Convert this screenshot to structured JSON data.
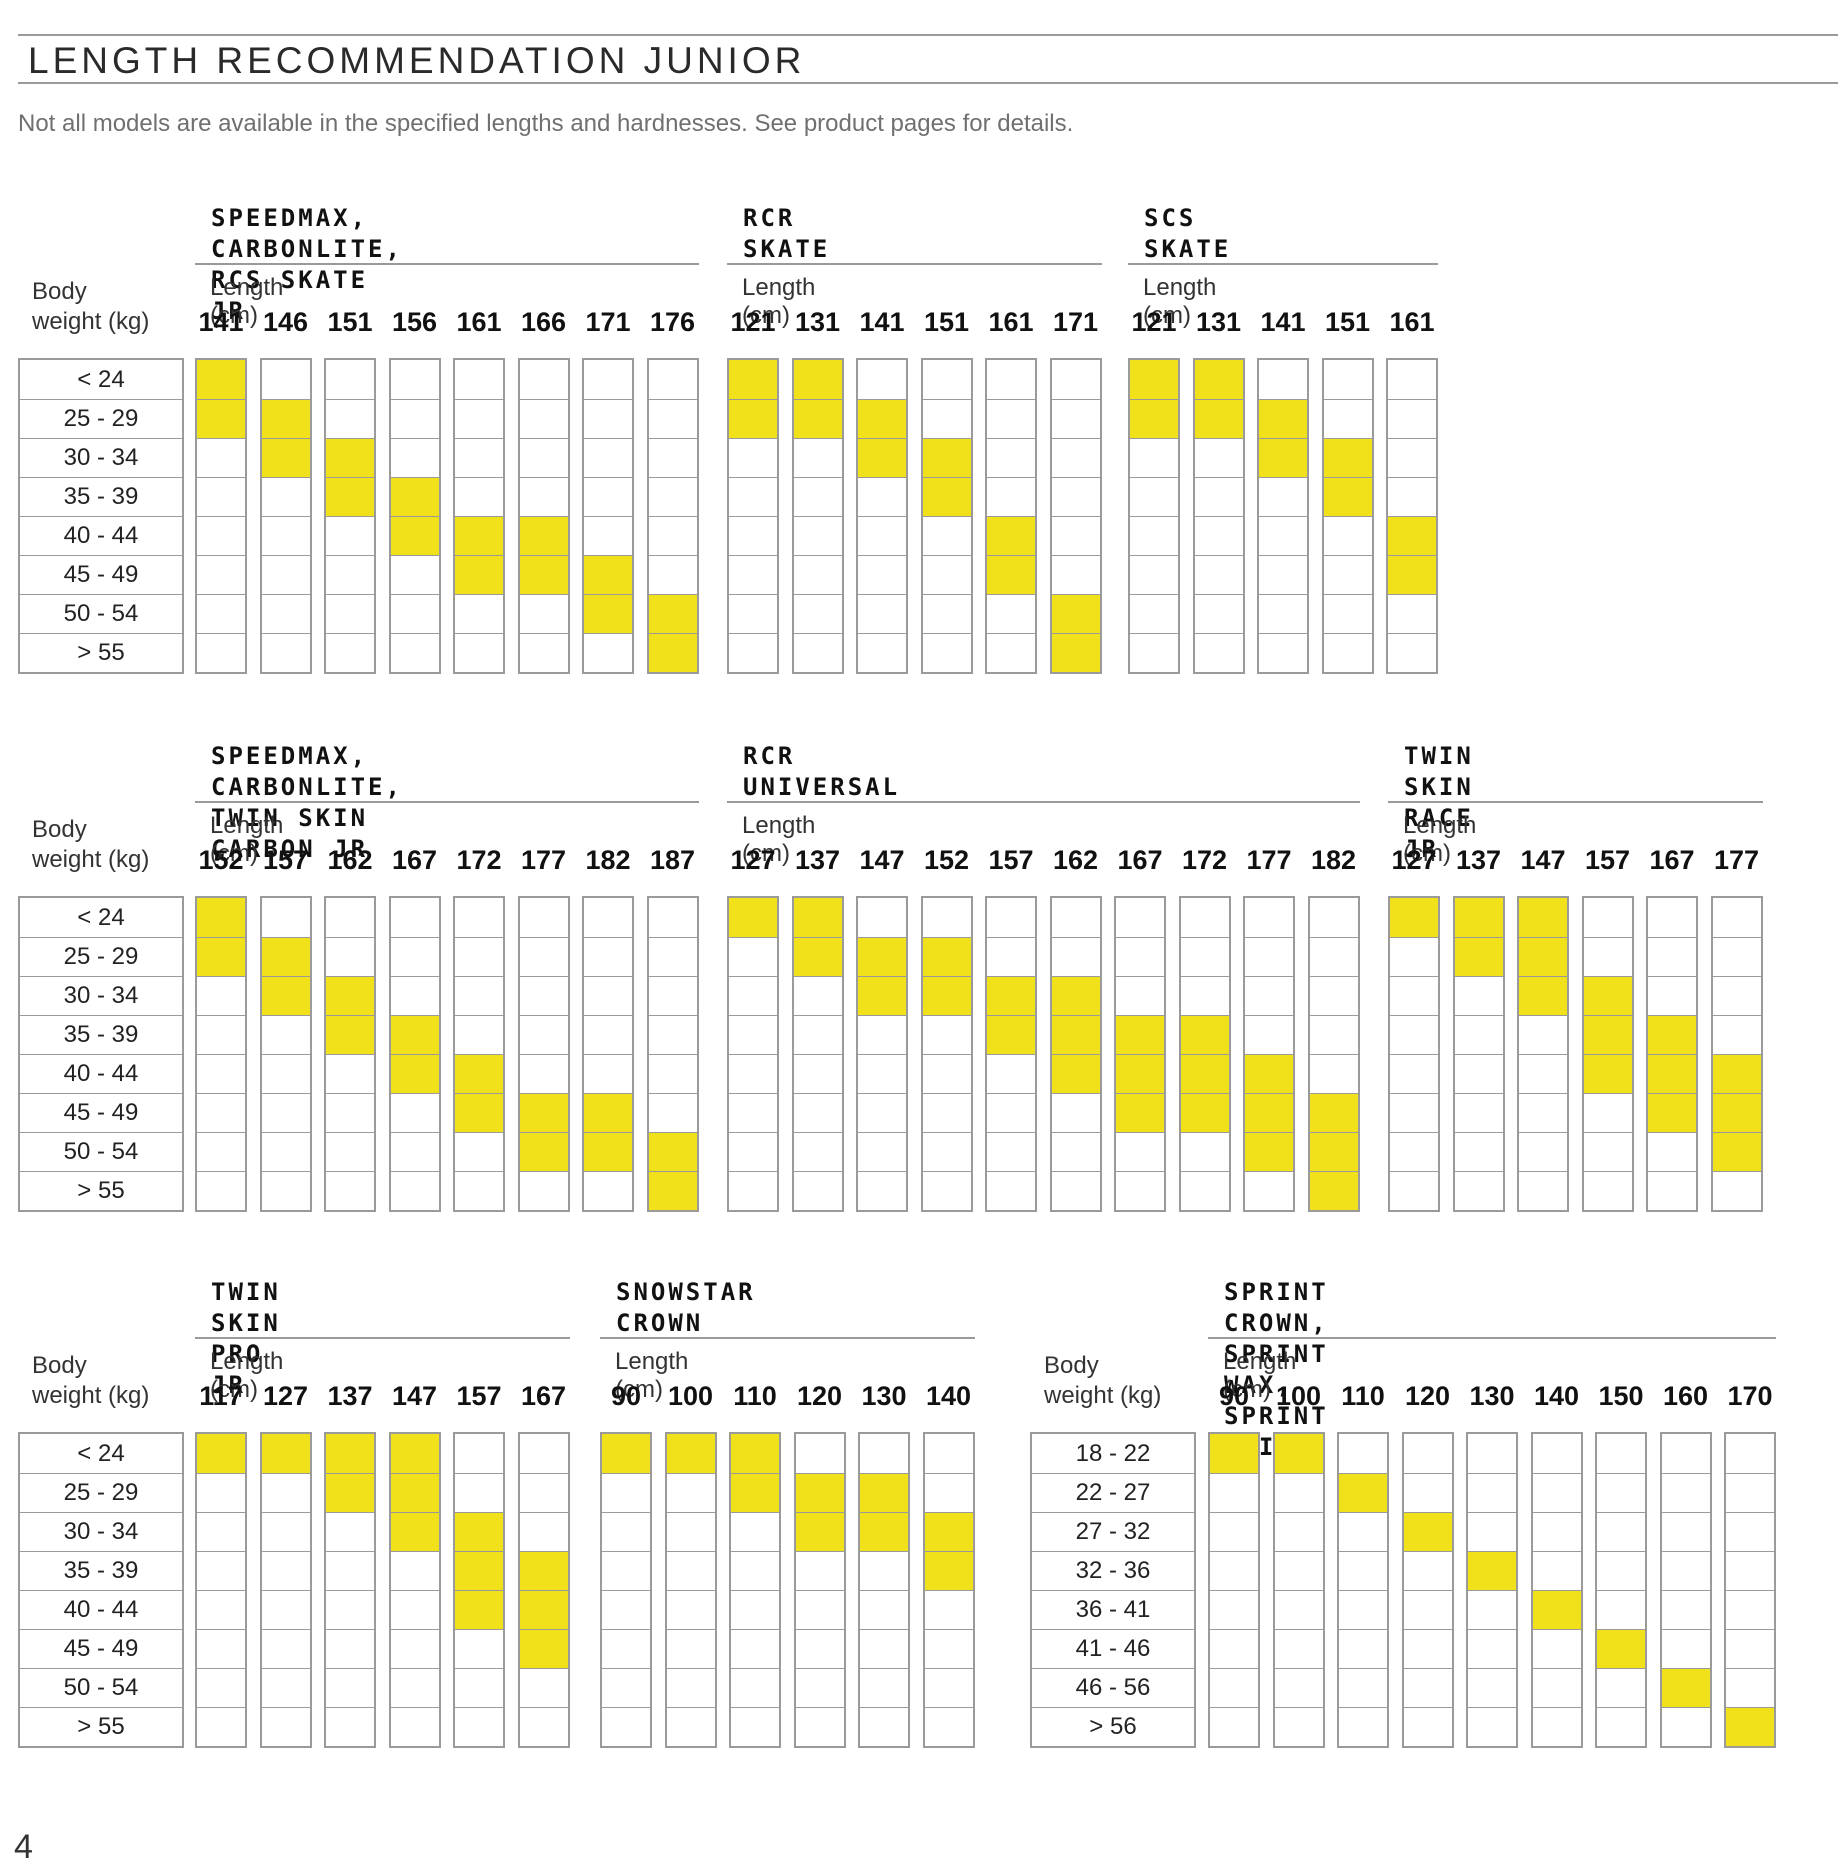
{
  "page": {
    "title": "LENGTH RECOMMENDATION JUNIOR",
    "subtitle": "Not all models are available in the specified lengths and hardnesses. See product pages for details.",
    "page_number": "4"
  },
  "colors": {
    "recommended": "#f0e11b",
    "grid": "#9a9a9a",
    "background": "#ffffff"
  },
  "labels": {
    "body_weight": "Body\nweight (kg)",
    "length": "Length (cm)"
  },
  "weights_default": [
    "< 24",
    "25 - 29",
    "30 - 34",
    "35 - 39",
    "40 - 44",
    "45 - 49",
    "50 - 54",
    "> 55"
  ],
  "weights_sprint": [
    "18 - 22",
    "22 - 27",
    "27 - 32",
    "32 - 36",
    "36 - 41",
    "41 - 46",
    "46 - 56",
    "> 56"
  ],
  "groups": [
    {
      "name": "SPEEDMAX, CARBONLITE,\nRCS SKATE JR",
      "lengths": [
        "141",
        "146",
        "151",
        "156",
        "161",
        "166",
        "171",
        "176"
      ],
      "recommended": [
        [
          0,
          1
        ],
        [
          1,
          2
        ],
        [
          2,
          3
        ],
        [
          3,
          4
        ],
        [
          4,
          5
        ],
        [
          4,
          5
        ],
        [
          5,
          6
        ],
        [
          6,
          7
        ]
      ]
    },
    {
      "name": "RCR SKATE",
      "lengths": [
        "121",
        "131",
        "141",
        "151",
        "161",
        "171"
      ],
      "recommended": [
        [
          0,
          1
        ],
        [
          0,
          1
        ],
        [
          1,
          2
        ],
        [
          2,
          3
        ],
        [
          4,
          5
        ],
        [
          6,
          7
        ]
      ]
    },
    {
      "name": "SCS SKATE",
      "lengths": [
        "121",
        "131",
        "141",
        "151",
        "161"
      ],
      "recommended": [
        [
          0,
          1
        ],
        [
          0,
          1
        ],
        [
          1,
          2
        ],
        [
          2,
          3
        ],
        [
          4,
          5
        ]
      ]
    },
    {
      "name": "SPEEDMAX, CARBONLITE,\nTWIN SKIN CARBON JR",
      "lengths": [
        "152",
        "157",
        "162",
        "167",
        "172",
        "177",
        "182",
        "187"
      ],
      "recommended": [
        [
          0,
          1
        ],
        [
          1,
          2
        ],
        [
          2,
          3
        ],
        [
          3,
          4
        ],
        [
          4,
          5
        ],
        [
          5,
          6
        ],
        [
          5,
          6
        ],
        [
          6,
          7
        ]
      ]
    },
    {
      "name": "RCR UNIVERSAL",
      "lengths": [
        "127",
        "137",
        "147",
        "152",
        "157",
        "162",
        "167",
        "172",
        "177",
        "182"
      ],
      "recommended": [
        [
          0,
          0
        ],
        [
          0,
          1
        ],
        [
          1,
          2
        ],
        [
          1,
          2
        ],
        [
          2,
          3
        ],
        [
          2,
          4
        ],
        [
          3,
          5
        ],
        [
          3,
          5
        ],
        [
          4,
          6
        ],
        [
          5,
          7
        ]
      ]
    },
    {
      "name": "TWIN SKIN RACE JR",
      "lengths": [
        "127",
        "137",
        "147",
        "157",
        "167",
        "177"
      ],
      "recommended": [
        [
          0,
          0
        ],
        [
          0,
          1
        ],
        [
          0,
          2
        ],
        [
          2,
          4
        ],
        [
          3,
          5
        ],
        [
          4,
          6
        ]
      ]
    },
    {
      "name": "TWIN SKIN PRO JR",
      "lengths": [
        "117",
        "127",
        "137",
        "147",
        "157",
        "167"
      ],
      "recommended": [
        [
          0,
          0
        ],
        [
          0,
          0
        ],
        [
          0,
          1
        ],
        [
          0,
          2
        ],
        [
          2,
          4
        ],
        [
          3,
          5
        ]
      ]
    },
    {
      "name": "SNOWSTAR CROWN",
      "lengths": [
        "90",
        "100",
        "110",
        "120",
        "130",
        "140"
      ],
      "recommended": [
        [
          0,
          0
        ],
        [
          0,
          0
        ],
        [
          0,
          1
        ],
        [
          1,
          2
        ],
        [
          1,
          2
        ],
        [
          2,
          3
        ]
      ]
    },
    {
      "name": "SPRINT CROWN, SPRINT WAX,\nSPRINT SKIN",
      "lengths": [
        "90",
        "100",
        "110",
        "120",
        "130",
        "140",
        "150",
        "160",
        "170"
      ],
      "recommended": [
        [
          0,
          0
        ],
        [
          0,
          0
        ],
        [
          1,
          1
        ],
        [
          2,
          2
        ],
        [
          3,
          3
        ],
        [
          4,
          4
        ],
        [
          5,
          5
        ],
        [
          6,
          6
        ],
        [
          7,
          7
        ]
      ]
    }
  ]
}
